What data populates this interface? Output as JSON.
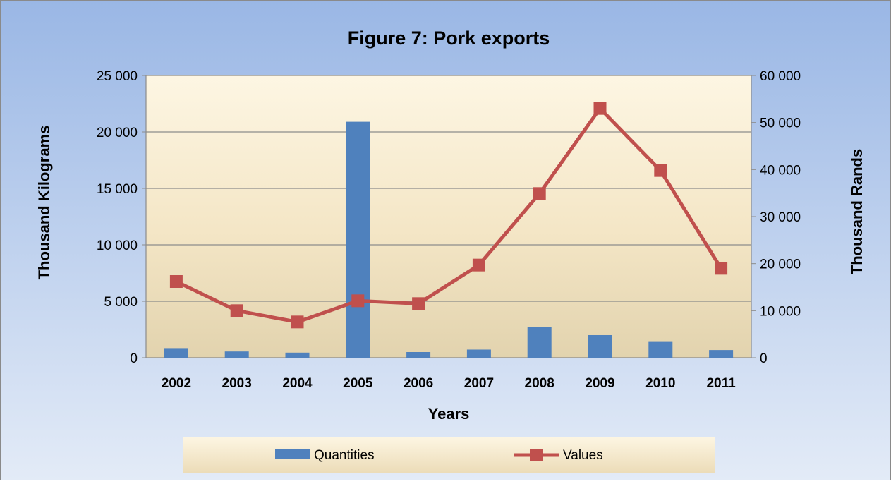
{
  "chart_data": {
    "type": "bar",
    "title": "Figure 7: Pork exports",
    "xlabel": "Years",
    "ylabel": "Thousand Kilograms",
    "y2label": "Thousand Rands",
    "categories": [
      "2002",
      "2003",
      "2004",
      "2005",
      "2006",
      "2007",
      "2008",
      "2009",
      "2010",
      "2011"
    ],
    "ylim": [
      0,
      25000
    ],
    "y2lim": [
      0,
      60000
    ],
    "yticks": [
      "0",
      "5 000",
      "10 000",
      "15 000",
      "20 000",
      "25 000"
    ],
    "y2ticks": [
      "0",
      "10 000",
      "20 000",
      "30 000",
      "40 000",
      "50 000",
      "60 000"
    ],
    "yticks_values": [
      0,
      5000,
      10000,
      15000,
      20000,
      25000
    ],
    "y2ticks_values": [
      0,
      10000,
      20000,
      30000,
      40000,
      50000,
      60000
    ],
    "grid": true,
    "legend_position": "bottom",
    "series": [
      {
        "name": "Quantities",
        "type": "bar",
        "axis": "left",
        "color": "#4f81bd",
        "values": [
          850,
          550,
          450,
          20900,
          500,
          720,
          2700,
          2000,
          1400,
          680
        ]
      },
      {
        "name": "Values",
        "type": "line",
        "axis": "right",
        "color": "#c0504d",
        "values": [
          16200,
          10000,
          7600,
          12100,
          11500,
          19700,
          34900,
          53000,
          39800,
          19000
        ]
      }
    ]
  }
}
